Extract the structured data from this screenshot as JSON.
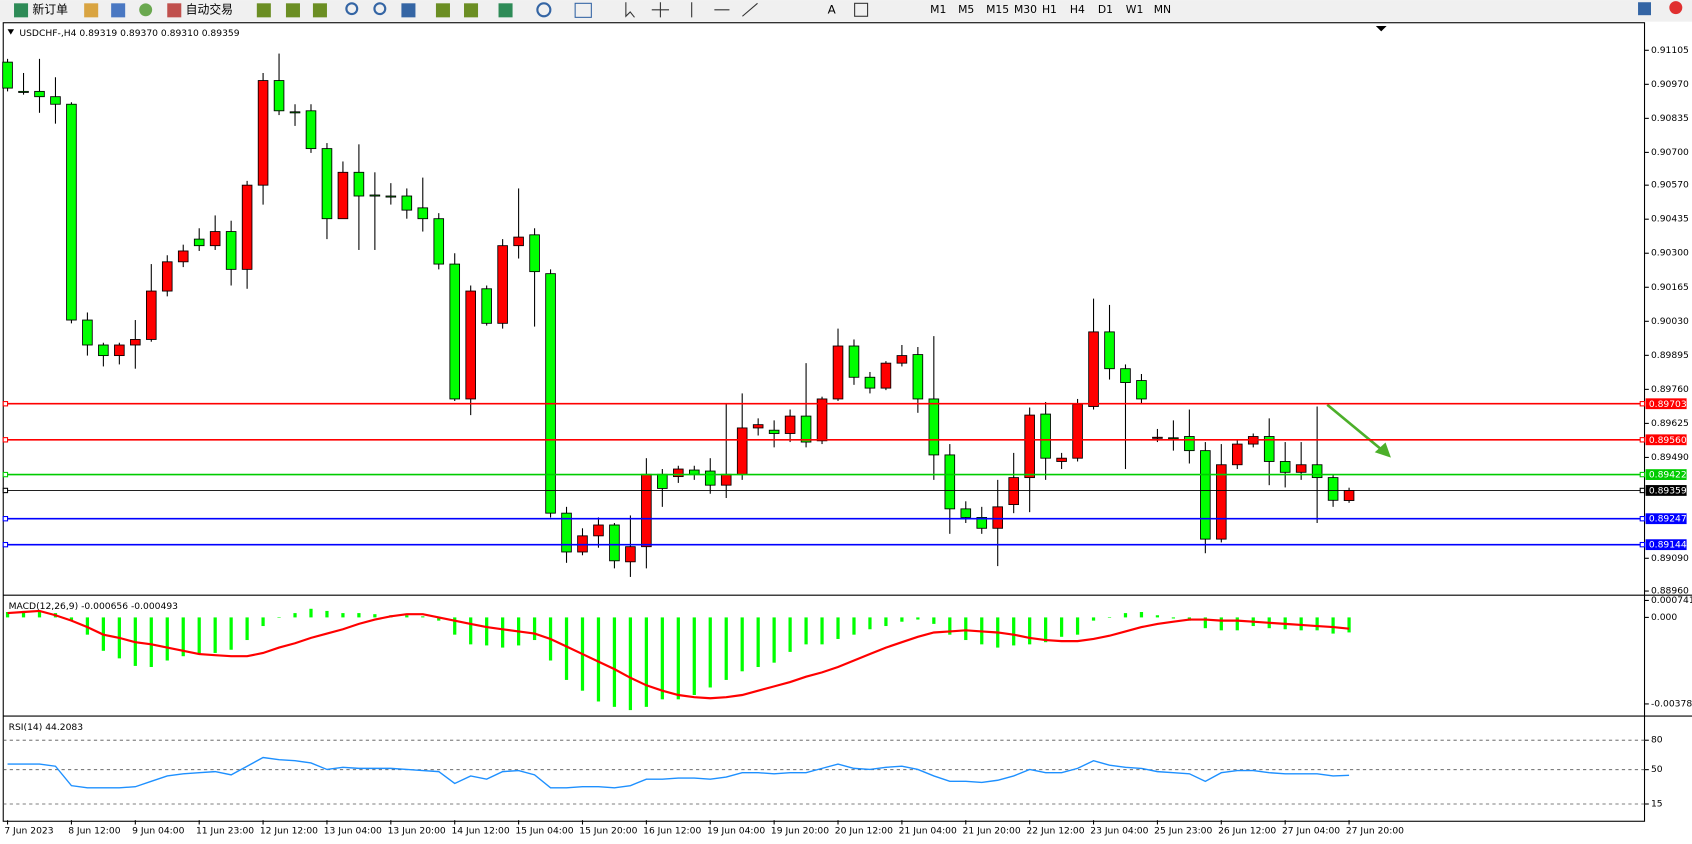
{
  "toolbar": {
    "buttons": [
      "新订单",
      "自动交易"
    ],
    "timeframes": [
      "M1",
      "M5",
      "M15",
      "M30",
      "H1",
      "H4",
      "D1",
      "W1",
      "MN"
    ]
  },
  "chart_data": [
    {
      "type": "candlestick",
      "title": "USDCHF-,H4  0.89319 0.89370 0.89310 0.89359",
      "categories": [
        "7 Jun 2023",
        null,
        null,
        null,
        "8 Jun 12:00",
        null,
        null,
        null,
        "9 Jun 04:00",
        null,
        null,
        null,
        "11 Jun 23:00",
        null,
        null,
        null,
        "12 Jun 12:00",
        null,
        null,
        null,
        "13 Jun 04:00",
        null,
        null,
        null,
        "13 Jun 20:00",
        null,
        null,
        null,
        "14 Jun 12:00",
        null,
        null,
        null,
        "15 Jun 04:00",
        null,
        null,
        null,
        "15 Jun 20:00",
        null,
        null,
        null,
        "16 Jun 12:00",
        null,
        null,
        null,
        "19 Jun 04:00",
        null,
        null,
        null,
        "19 Jun 20:00",
        null,
        null,
        null,
        "20 Jun 12:00",
        null,
        null,
        null,
        "21 Jun 04:00",
        null,
        null,
        null,
        "21 Jun 20:00",
        null,
        null,
        null,
        "22 Jun 12:00",
        null,
        null,
        null,
        "23 Jun 04:00",
        null,
        null,
        null,
        "25 Jun 23:00",
        null,
        null,
        null,
        "26 Jun 12:00",
        null,
        null,
        null,
        "27 Jun 04:00",
        null,
        null,
        null,
        "27 Jun 20:00"
      ],
      "open": [
        0.91058,
        0.90942,
        0.90942,
        0.90921,
        0.90891,
        0.90035,
        0.89936,
        0.89894,
        0.89936,
        0.89958,
        0.9015,
        0.90266,
        0.90356,
        0.9033,
        0.90386,
        0.90236,
        0.9057,
        0.90985,
        0.90861,
        0.90865,
        0.90715,
        0.90437,
        0.90621,
        0.90531,
        0.90527,
        0.90527,
        0.9048,
        0.90437,
        0.90257,
        0.89722,
        0.90159,
        0.90022,
        0.9033,
        0.90373,
        0.90219,
        0.89269,
        0.89115,
        0.89179,
        0.89222,
        0.89076,
        0.89136,
        0.89423,
        0.89414,
        0.8944,
        0.89436,
        0.8938,
        0.89423,
        0.89607,
        0.89598,
        0.89585,
        0.89654,
        0.89556,
        0.89722,
        0.89932,
        0.89808,
        0.89765,
        0.89864,
        0.89898,
        0.89722,
        0.895,
        0.89286,
        0.89252,
        0.89209,
        0.89303,
        0.8941,
        0.89662,
        0.89474,
        0.89487,
        0.89692,
        0.89988,
        0.89842,
        0.89795,
        0.89568,
        0.89568,
        0.89573,
        0.89517,
        0.89166,
        0.89461,
        0.89543,
        0.89573,
        0.89474,
        0.89431,
        0.89461,
        0.8941,
        0.89319
      ],
      "high": [
        0.91071,
        0.91015,
        0.91071,
        0.90998,
        0.90899,
        0.90065,
        0.89945,
        0.89945,
        0.90035,
        0.90257,
        0.90292,
        0.90334,
        0.90399,
        0.9045,
        0.90429,
        0.90587,
        0.91015,
        0.91092,
        0.90891,
        0.90891,
        0.90737,
        0.90664,
        0.90732,
        0.90621,
        0.90578,
        0.90557,
        0.906,
        0.90459,
        0.903,
        0.90172,
        0.90172,
        0.90356,
        0.90557,
        0.90399,
        0.90236,
        0.89294,
        0.89209,
        0.89252,
        0.8923,
        0.8926,
        0.89487,
        0.89444,
        0.89457,
        0.89457,
        0.89487,
        0.89701,
        0.89744,
        0.89645,
        0.89637,
        0.8968,
        0.89864,
        0.89731,
        0.90001,
        0.89958,
        0.89829,
        0.89872,
        0.89936,
        0.89928,
        0.89971,
        0.89543,
        0.89316,
        0.89294,
        0.89401,
        0.89508,
        0.89688,
        0.8971,
        0.89508,
        0.89722,
        0.9012,
        0.90095,
        0.89859,
        0.89821,
        0.89603,
        0.89637,
        0.8968,
        0.89551,
        0.89543,
        0.8956,
        0.89585,
        0.89645,
        0.89551,
        0.89551,
        0.89692,
        0.89423,
        0.8937
      ],
      "low": [
        0.90942,
        0.90929,
        0.90857,
        0.90814,
        0.90022,
        0.89894,
        0.89851,
        0.89859,
        0.89842,
        0.89949,
        0.90129,
        0.90245,
        0.90309,
        0.90313,
        0.90172,
        0.90159,
        0.90493,
        0.90848,
        0.90805,
        0.90698,
        0.90356,
        0.90437,
        0.90313,
        0.90313,
        0.90493,
        0.90437,
        0.90386,
        0.90236,
        0.89714,
        0.89658,
        0.90013,
        0.90001,
        0.90279,
        0.90009,
        0.89252,
        0.89072,
        0.89102,
        0.89132,
        0.8905,
        0.89016,
        0.8905,
        0.89294,
        0.89389,
        0.89401,
        0.89346,
        0.89329,
        0.89401,
        0.89577,
        0.8953,
        0.89551,
        0.8953,
        0.89543,
        0.89714,
        0.89778,
        0.89744,
        0.89757,
        0.89851,
        0.89667,
        0.89401,
        0.89187,
        0.8923,
        0.89187,
        0.89059,
        0.89269,
        0.89273,
        0.89401,
        0.89444,
        0.89474,
        0.8968,
        0.89799,
        0.89444,
        0.89701,
        0.89551,
        0.89517,
        0.89466,
        0.8911,
        0.89153,
        0.89444,
        0.8953,
        0.8938,
        0.89371,
        0.89401,
        0.8923,
        0.89294,
        0.8931
      ],
      "close": [
        0.90955,
        0.90938,
        0.90921,
        0.90891,
        0.90035,
        0.89936,
        0.89894,
        0.89936,
        0.89958,
        0.9015,
        0.90266,
        0.90309,
        0.9033,
        0.90386,
        0.90236,
        0.9057,
        0.90985,
        0.90865,
        0.9086,
        0.90715,
        0.90437,
        0.90621,
        0.90527,
        0.9053,
        0.90525,
        0.90471,
        0.90437,
        0.90257,
        0.89722,
        0.9015,
        0.90022,
        0.9033,
        0.90364,
        0.90227,
        0.89269,
        0.89115,
        0.89179,
        0.89222,
        0.8908,
        0.89136,
        0.89423,
        0.89367,
        0.89444,
        0.89423,
        0.8938,
        0.89423,
        0.89607,
        0.8962,
        0.89585,
        0.89654,
        0.89551,
        0.89722,
        0.89932,
        0.89808,
        0.89765,
        0.89864,
        0.89894,
        0.89722,
        0.895,
        0.89286,
        0.89252,
        0.89209,
        0.89294,
        0.8941,
        0.89658,
        0.89487,
        0.89487,
        0.89701,
        0.89988,
        0.89842,
        0.89787,
        0.89722,
        0.8957,
        0.89565,
        0.89517,
        0.89166,
        0.89461,
        0.89543,
        0.89573,
        0.89474,
        0.89431,
        0.89461,
        0.8941,
        0.8932,
        0.89359
      ],
      "up_color": "#ff0000",
      "down_color": "#00ff00",
      "ylim": [
        0.8895,
        0.9121
      ],
      "yticks": [
        0.91105,
        {
          "value": 0.9097,
          "label": "0.90970"
        },
        0.90835,
        {
          "value": 0.907,
          "label": "0.90700"
        },
        {
          "value": 0.9057,
          "label": "0.90570"
        },
        0.90435,
        {
          "value": 0.903,
          "label": "0.90300"
        },
        0.90165,
        {
          "value": 0.9003,
          "label": "0.90030"
        },
        0.89895,
        {
          "value": 0.8976,
          "label": "0.89760"
        },
        0.89625,
        {
          "value": 0.8949,
          "label": "0.89490"
        },
        {
          "value": 0.8909,
          "label": "0.89090"
        },
        {
          "value": 0.8896,
          "label": "0.88960"
        }
      ],
      "levels": [
        {
          "value": 0.89703,
          "color": "#ff0000"
        },
        {
          "value": 0.8956,
          "label": "0.89560",
          "color": "#ff0000"
        },
        {
          "value": 0.89422,
          "color": "#00cc00"
        },
        {
          "value": 0.89359,
          "color": "#000000"
        },
        {
          "value": 0.89247,
          "color": "#0000ff"
        },
        {
          "value": 0.89144,
          "color": "#0000ff"
        }
      ]
    },
    {
      "type": "macd",
      "title": "MACD(12,26,9) -0.000656 -0.000493",
      "color": "#00ff00",
      "signal_color": "#ff0000",
      "values": [
        0.000236,
        0.000283,
        0.000283,
        0.000188,
        -0.000141,
        -0.000754,
        -0.00146,
        -0.00179,
        -0.00212,
        -0.002167,
        -0.001884,
        -0.001696,
        -0.001601,
        -0.001554,
        -0.001413,
        -0.000989,
        -0.000377,
        0,
        0.000188,
        0.000377,
        0.000283,
        0.000188,
        0.000188,
        0.000141,
        9.4e-05,
        9.4e-05,
        4.7e-05,
        -0.000141,
        -0.000754,
        -0.001178,
        -0.001225,
        -0.001319,
        -0.001225,
        -0.000989,
        -0.001884,
        -0.002732,
        -0.003203,
        -0.003674,
        -0.003909,
        -0.004051,
        -0.003909,
        -0.00358,
        -0.00358,
        -0.003391,
        -0.003062,
        -0.002732,
        -0.002355,
        -0.002167,
        -0.001978,
        -0.001507,
        -0.001178,
        -0.001178,
        -0.000942,
        -0.000754,
        -0.000518,
        -0.000377,
        -0.000188,
        -9.4e-05,
        -0.000283,
        -0.000754,
        -0.000989,
        -0.001178,
        -0.001319,
        -0.001225,
        -0.001178,
        -0.001083,
        -0.000848,
        -0.000754,
        -0.000141,
        0,
        0.000188,
        0.000236,
        9.4e-05,
        -4.7e-05,
        -0.000141,
        -0.000471,
        -0.000565,
        -0.000565,
        -0.000377,
        -0.000471,
        -0.000518,
        -0.000565,
        -0.000565,
        -0.000707,
        -0.000656
      ],
      "signal": [
        0.000188,
        0.000236,
        0.000283,
        9.4e-05,
        -0.000141,
        -0.000424,
        -0.000754,
        -0.000895,
        -0.001083,
        -0.001178,
        -0.001319,
        -0.00146,
        -0.001601,
        -0.001649,
        -0.001696,
        -0.001696,
        -0.001554,
        -0.001319,
        -0.00113,
        -0.000895,
        -0.000707,
        -0.000518,
        -0.000283,
        -9.4e-05,
        4.7e-05,
        0.000141,
        0.000141,
        0,
        -0.000141,
        -0.000283,
        -0.000424,
        -0.000518,
        -0.000612,
        -0.000707,
        -0.000942,
        -0.001272,
        -0.001601,
        -0.001931,
        -0.002261,
        -0.002638,
        -0.002967,
        -0.003203,
        -0.003391,
        -0.003485,
        -0.003533,
        -0.003485,
        -0.003391,
        -0.003203,
        -0.003014,
        -0.002826,
        -0.002591,
        -0.002402,
        -0.002167,
        -0.001884,
        -0.001601,
        -0.001319,
        -0.001083,
        -0.000848,
        -0.000659,
        -0.000612,
        -0.000565,
        -0.000612,
        -0.000659,
        -0.000754,
        -0.000895,
        -0.000989,
        -0.001036,
        -0.001036,
        -0.000942,
        -0.000801,
        -0.000612,
        -0.000424,
        -0.000283,
        -0.000188,
        -9.4e-05,
        -9.4e-05,
        -0.000141,
        -0.000141,
        -0.000188,
        -0.000236,
        -0.000283,
        -0.00033,
        -0.000377,
        -0.000424,
        -0.000493
      ],
      "ylim": [
        -0.00424,
        0.0009
      ],
      "yticks": [
        0.000741,
        {
          "value": 0,
          "label": "0.000"
        },
        -0.003781
      ]
    },
    {
      "type": "rsi",
      "title": "RSI(14) 44.2083",
      "color": "#1e90ff",
      "grid": true,
      "values": [
        55.7,
        55.7,
        55.7,
        53.5,
        33.7,
        31.5,
        31.5,
        31.5,
        32.6,
        38.1,
        43.6,
        45.8,
        46.9,
        48,
        44.7,
        53.5,
        62.4,
        60.2,
        59.1,
        56.8,
        50.2,
        52.4,
        51.3,
        51.3,
        51.3,
        50.2,
        49.1,
        48,
        35.9,
        43.6,
        40.3,
        48,
        49.1,
        44.7,
        31.5,
        31.5,
        32.6,
        32.6,
        31.5,
        33.7,
        40.3,
        40.3,
        41.4,
        41.4,
        40.3,
        42.5,
        46.9,
        46.9,
        45.8,
        46.9,
        46.9,
        51.3,
        55.7,
        51.3,
        50.2,
        52.4,
        53.5,
        50.2,
        43.6,
        38.1,
        38.1,
        37,
        39.2,
        43.6,
        50.2,
        46.9,
        46.9,
        51.3,
        59.1,
        54.6,
        52.4,
        51.3,
        48,
        46.9,
        45.8,
        38.1,
        46.9,
        49.1,
        49.1,
        46.9,
        45.8,
        45.8,
        45.8,
        43.6,
        44.2083
      ],
      "ylim": [
        -1.5,
        103
      ],
      "yticks": [
        80,
        50,
        15
      ]
    }
  ]
}
